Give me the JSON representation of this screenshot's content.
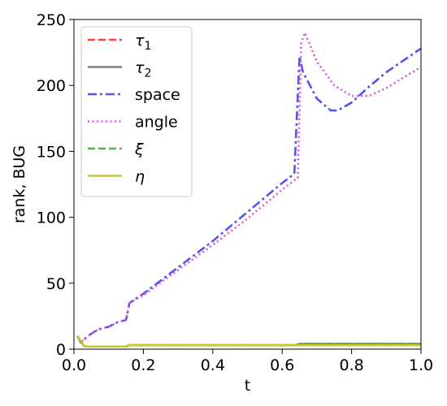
{
  "chart_data": {
    "type": "line",
    "title": "",
    "xlabel": "t",
    "ylabel": "rank, BUG",
    "xlim": [
      0.0,
      1.0
    ],
    "ylim": [
      0,
      250
    ],
    "xticks": [
      "0.0",
      "0.2",
      "0.4",
      "0.6",
      "0.8",
      "1.0"
    ],
    "yticks": [
      "0",
      "50",
      "100",
      "150",
      "200",
      "250"
    ],
    "grid": false,
    "legend_position": "top-left",
    "series": [
      {
        "name": "τ",
        "subscript": "1",
        "italic": true,
        "color": "#ff4040",
        "dash": "dashed",
        "x": [
          0.01,
          0.03,
          0.15,
          0.16,
          0.64,
          0.65,
          1.0
        ],
        "y": [
          10,
          2,
          2,
          3,
          3,
          4,
          4
        ]
      },
      {
        "name": "τ",
        "subscript": "2",
        "italic": true,
        "color": "#808080",
        "dash": "solid",
        "x": [
          0.01,
          0.03,
          0.15,
          0.16,
          0.64,
          0.65,
          1.0
        ],
        "y": [
          10,
          2,
          2,
          3,
          3,
          4,
          4
        ]
      },
      {
        "name": "space",
        "subscript": "",
        "italic": false,
        "color": "#5555ee",
        "dash": "dashdot",
        "x": [
          0.01,
          0.02,
          0.04,
          0.07,
          0.1,
          0.13,
          0.15,
          0.16,
          0.2,
          0.3,
          0.4,
          0.5,
          0.6,
          0.635,
          0.65,
          0.66,
          0.7,
          0.74,
          0.76,
          0.8,
          0.85,
          0.9,
          0.95,
          1.0
        ],
        "y": [
          10,
          5,
          10,
          15,
          17,
          21,
          22,
          35,
          42,
          62,
          82,
          104,
          126,
          133,
          222,
          210,
          190,
          181,
          181,
          187,
          199,
          210,
          219,
          228
        ]
      },
      {
        "name": "angle",
        "subscript": "",
        "italic": false,
        "color": "#dd55dd",
        "dash": "dotted",
        "x": [
          0.01,
          0.02,
          0.04,
          0.07,
          0.1,
          0.13,
          0.15,
          0.16,
          0.2,
          0.3,
          0.4,
          0.5,
          0.6,
          0.645,
          0.655,
          0.665,
          0.7,
          0.75,
          0.8,
          0.85,
          0.9,
          0.95,
          1.0
        ],
        "y": [
          10,
          5,
          10,
          15,
          17,
          21,
          22,
          35,
          41,
          60,
          79,
          99,
          121,
          130,
          232,
          240,
          218,
          200,
          192,
          192,
          198,
          206,
          214
        ]
      },
      {
        "name": "ξ",
        "subscript": "",
        "italic": true,
        "color": "#4caf50",
        "dash": "dashed",
        "x": [
          0.01,
          0.03,
          0.15,
          0.16,
          0.64,
          0.65,
          1.0
        ],
        "y": [
          10,
          2,
          2,
          3,
          3,
          4,
          4
        ]
      },
      {
        "name": "η",
        "subscript": "",
        "italic": true,
        "color": "#c8c820",
        "dash": "solid",
        "x": [
          0.01,
          0.03,
          0.15,
          0.16,
          0.64,
          0.65,
          1.0
        ],
        "y": [
          10,
          2,
          2,
          3,
          3,
          3,
          3
        ]
      }
    ]
  }
}
